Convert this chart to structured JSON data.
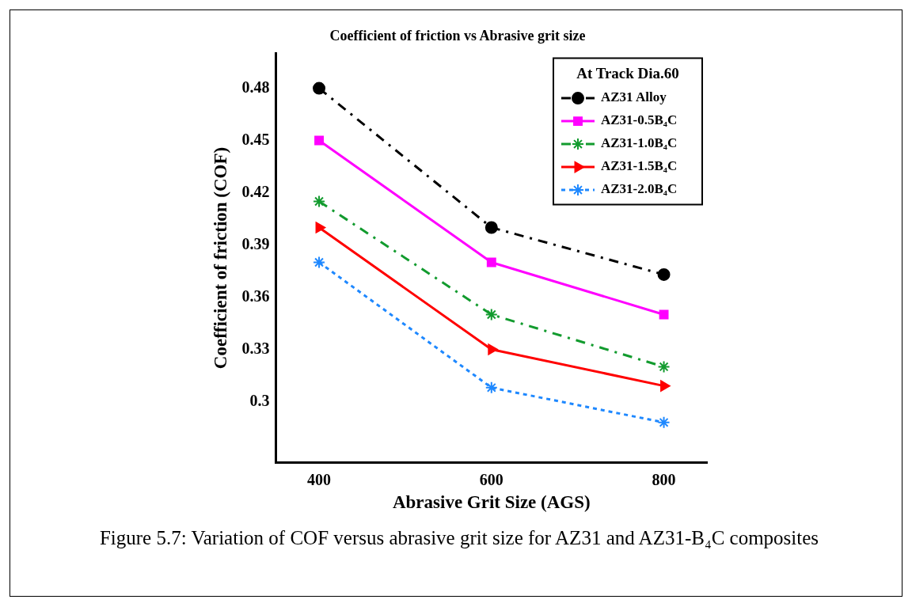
{
  "chart_data": {
    "type": "line",
    "title": "Coefficient of friction vs Abrasive grit size",
    "xlabel": "Abrasive Grit Size (AGS)",
    "ylabel": "Coefficient of friction (COF)",
    "legend_title": "At Track Dia.60",
    "legend": "top right",
    "grid": false,
    "x": [
      400,
      600,
      800
    ],
    "xlim": [
      350,
      850
    ],
    "xticks": [
      400,
      600,
      800
    ],
    "ylim": [
      0.265,
      0.5
    ],
    "yticks": [
      0.3,
      0.33,
      0.36,
      0.39,
      0.42,
      0.45,
      0.48
    ],
    "series": [
      {
        "name": "AZ31 Alloy",
        "color": "#000000",
        "marker": "circle",
        "line_style": "dashdot",
        "values": [
          0.48,
          0.4,
          0.373
        ]
      },
      {
        "name": "AZ31-0.5B₄C",
        "color": "#ff00ff",
        "marker": "square",
        "line_style": "solid",
        "values": [
          0.45,
          0.38,
          0.35
        ]
      },
      {
        "name": "AZ31-1.0B₄C",
        "color": "#129b2e",
        "marker": "cross",
        "line_style": "dashdot",
        "values": [
          0.415,
          0.35,
          0.32
        ]
      },
      {
        "name": "AZ31-1.5B₄C",
        "color": "#ff0000",
        "marker": "triangle",
        "line_style": "solid",
        "values": [
          0.4,
          0.33,
          0.309
        ]
      },
      {
        "name": "AZ31-2.0B₄C",
        "color": "#1e88ff",
        "marker": "cross",
        "line_style": "dotted",
        "values": [
          0.38,
          0.308,
          0.288
        ]
      }
    ],
    "annotations": [
      "Figure 5.7: Variation of COF versus abrasive grit size for AZ31 and AZ31-B₄C composites"
    ]
  }
}
